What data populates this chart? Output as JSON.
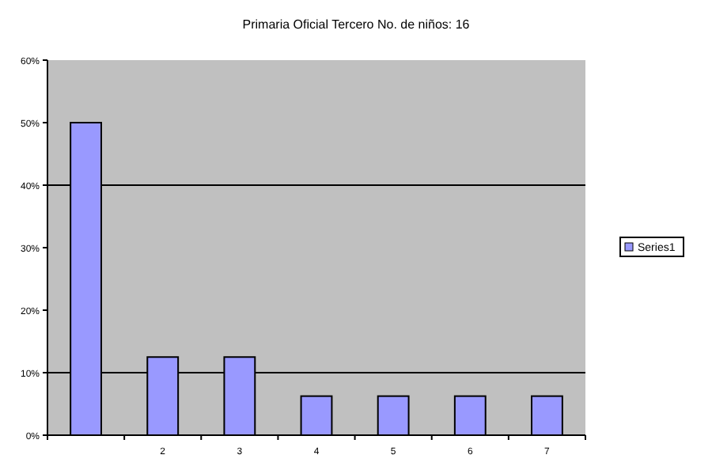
{
  "chart_data": {
    "type": "bar",
    "title": "Primaria Oficial Tercero No. de niños: 16",
    "categories": [
      null,
      "2",
      "3",
      "4",
      "5",
      "6",
      "7"
    ],
    "series": [
      {
        "name": "Series1",
        "color": "#9999ff",
        "values": [
          50,
          12.5,
          12.5,
          6.25,
          6.25,
          6.25,
          6.25
        ]
      }
    ],
    "ylim": [
      0,
      60
    ],
    "yticks": [
      {
        "value": 0,
        "label": "0%"
      },
      {
        "value": 10,
        "label": "10%"
      },
      {
        "value": 20,
        "label": "20%"
      },
      {
        "value": 30,
        "label": "30%"
      },
      {
        "value": 40,
        "label": "40%"
      },
      {
        "value": 50,
        "label": "50%"
      },
      {
        "value": 60,
        "label": "60%"
      }
    ],
    "ref_lines": [
      {
        "axis": "y",
        "value": 10,
        "color": "#000000"
      },
      {
        "axis": "y",
        "value": 40,
        "color": "#000000"
      }
    ],
    "grid": false,
    "legend": "right"
  }
}
